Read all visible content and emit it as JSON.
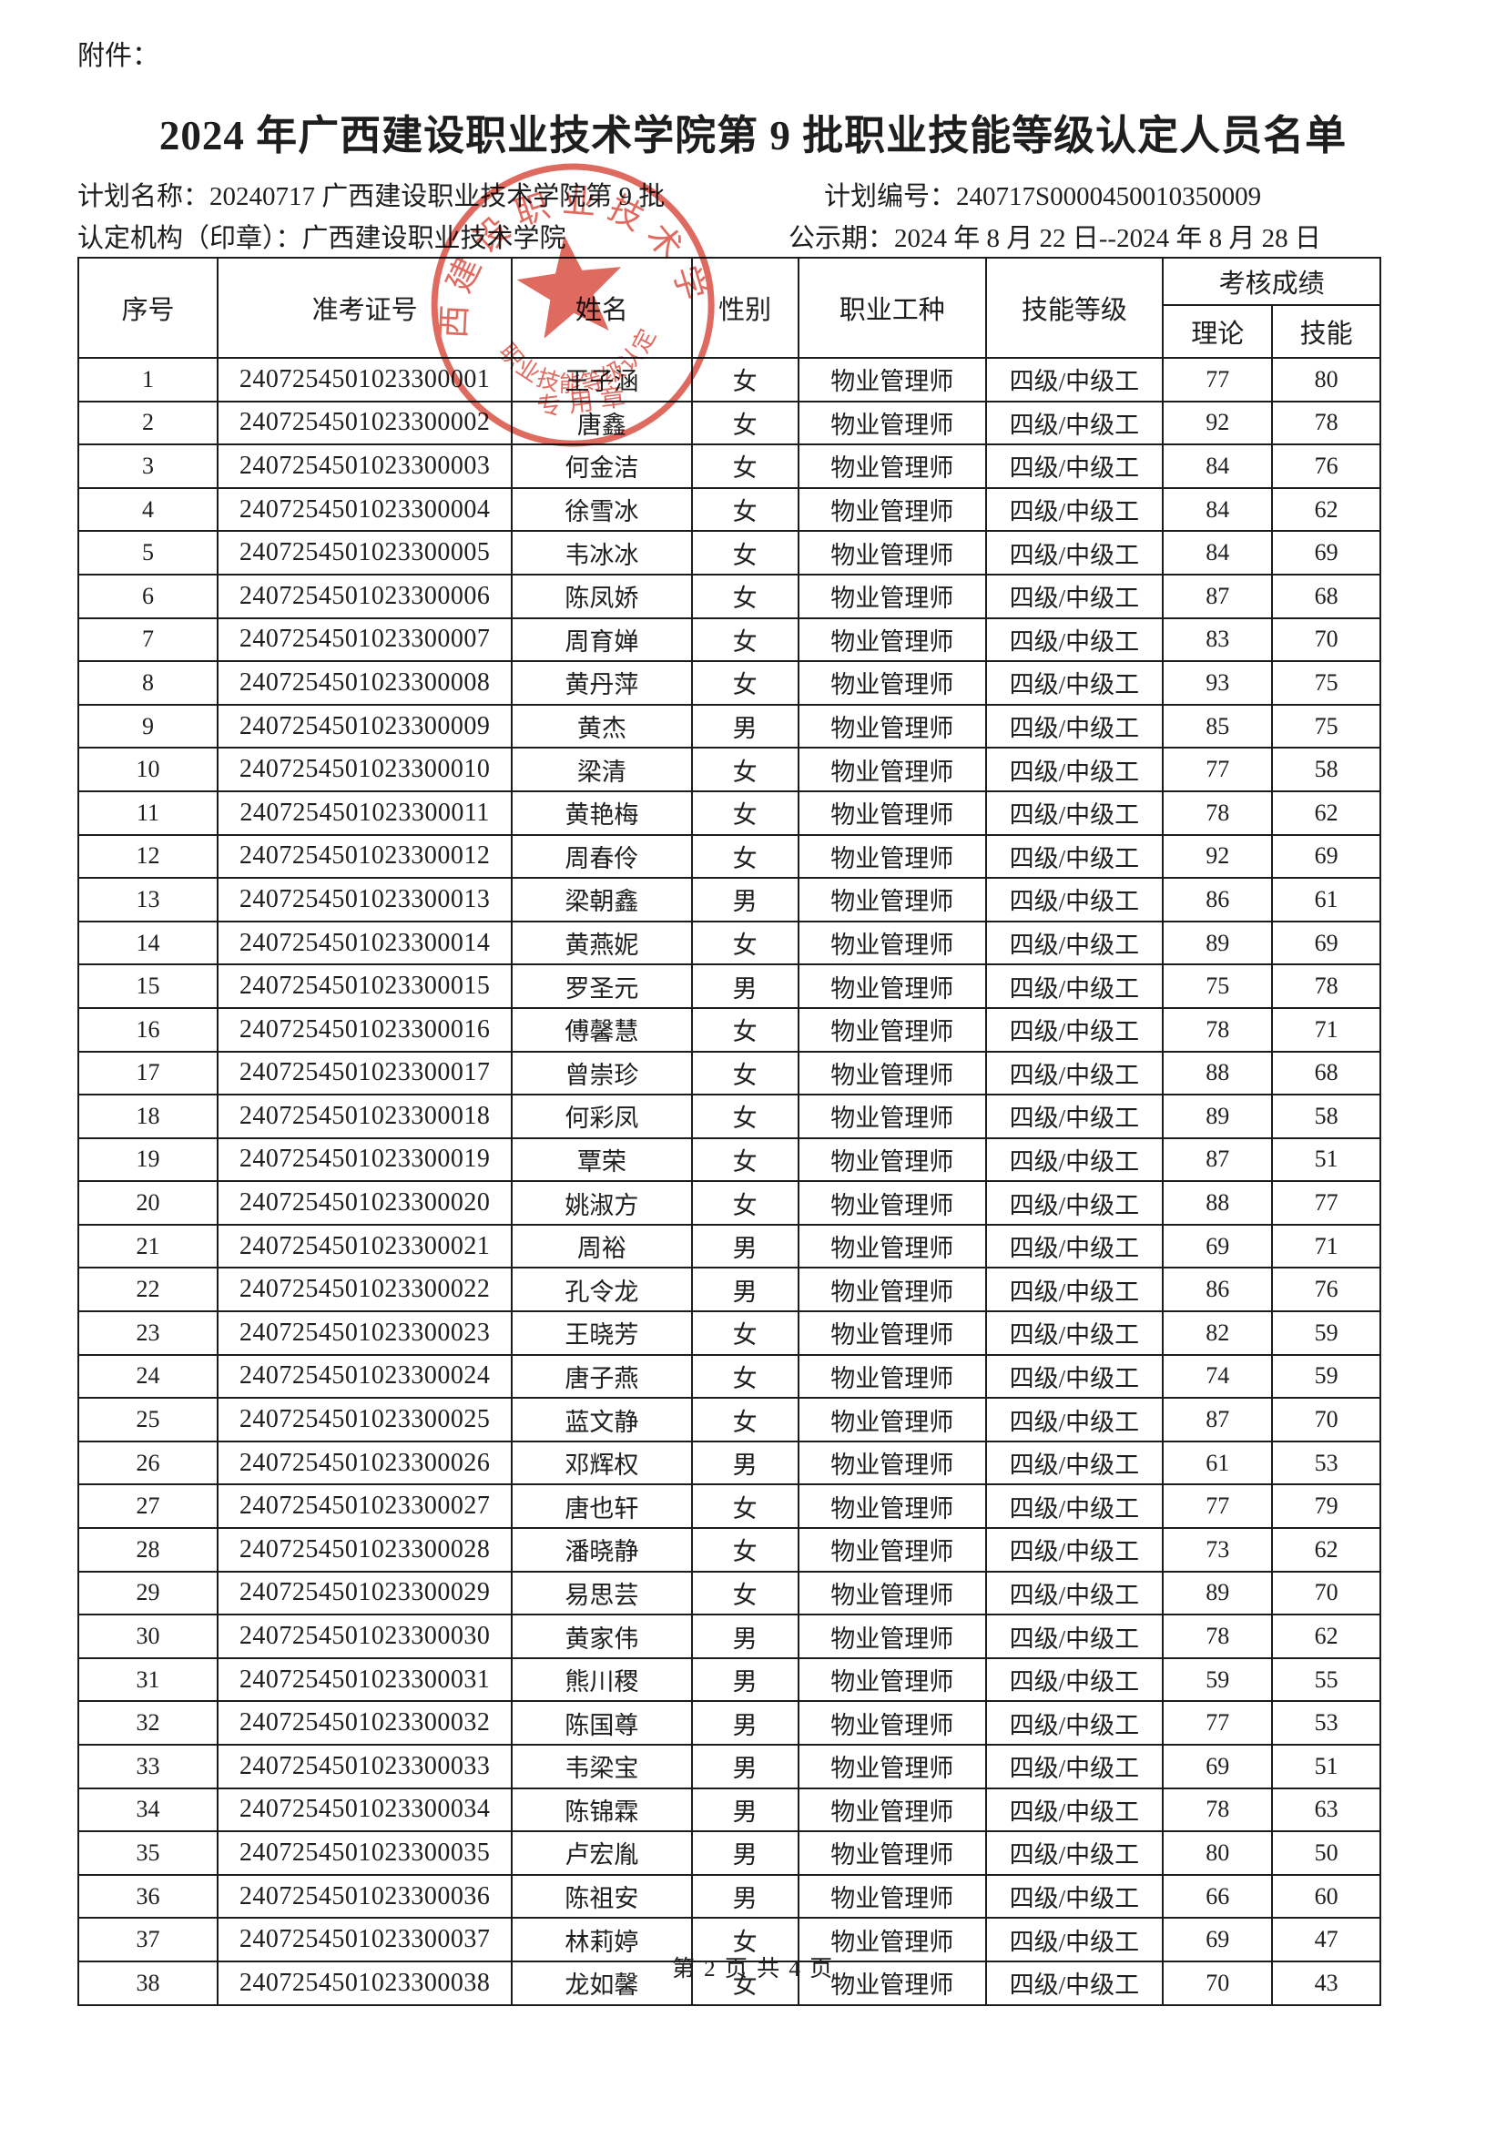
{
  "attachment_label": "附件：",
  "title": "2024 年广西建设职业技术学院第 9 批职业技能等级认定人员名单",
  "meta": {
    "plan_name": "计划名称：20240717 广西建设职业技术学院第 9 批",
    "plan_no": "计划编号：240717S0000450010350009",
    "org": "认定机构（印章）：广西建设职业技术学院",
    "publicity": "公示期：2024 年 8 月 22 日--2024 年 8 月 28 日"
  },
  "stamp": {
    "ring_text": "广西建设职业技术学院",
    "bottom_arc_text": "职业技能等级认定",
    "bottom_label": "专用章",
    "color": "#d8493d"
  },
  "table": {
    "headers": {
      "serial": "序号",
      "ticket": "准考证号",
      "name": "姓名",
      "gender": "性别",
      "occupation": "职业工种",
      "level": "技能等级",
      "score_group": "考核成绩",
      "theory": "理论",
      "skill": "技能"
    },
    "rows": [
      [
        "1",
        "2407254501023300001",
        "王子涵",
        "女",
        "物业管理师",
        "四级/中级工",
        "77",
        "80"
      ],
      [
        "2",
        "2407254501023300002",
        "唐鑫",
        "女",
        "物业管理师",
        "四级/中级工",
        "92",
        "78"
      ],
      [
        "3",
        "2407254501023300003",
        "何金洁",
        "女",
        "物业管理师",
        "四级/中级工",
        "84",
        "76"
      ],
      [
        "4",
        "2407254501023300004",
        "徐雪冰",
        "女",
        "物业管理师",
        "四级/中级工",
        "84",
        "62"
      ],
      [
        "5",
        "2407254501023300005",
        "韦冰冰",
        "女",
        "物业管理师",
        "四级/中级工",
        "84",
        "69"
      ],
      [
        "6",
        "2407254501023300006",
        "陈凤娇",
        "女",
        "物业管理师",
        "四级/中级工",
        "87",
        "68"
      ],
      [
        "7",
        "2407254501023300007",
        "周育婵",
        "女",
        "物业管理师",
        "四级/中级工",
        "83",
        "70"
      ],
      [
        "8",
        "2407254501023300008",
        "黄丹萍",
        "女",
        "物业管理师",
        "四级/中级工",
        "93",
        "75"
      ],
      [
        "9",
        "2407254501023300009",
        "黄杰",
        "男",
        "物业管理师",
        "四级/中级工",
        "85",
        "75"
      ],
      [
        "10",
        "2407254501023300010",
        "梁清",
        "女",
        "物业管理师",
        "四级/中级工",
        "77",
        "58"
      ],
      [
        "11",
        "2407254501023300011",
        "黄艳梅",
        "女",
        "物业管理师",
        "四级/中级工",
        "78",
        "62"
      ],
      [
        "12",
        "2407254501023300012",
        "周春伶",
        "女",
        "物业管理师",
        "四级/中级工",
        "92",
        "69"
      ],
      [
        "13",
        "2407254501023300013",
        "梁朝鑫",
        "男",
        "物业管理师",
        "四级/中级工",
        "86",
        "61"
      ],
      [
        "14",
        "2407254501023300014",
        "黄燕妮",
        "女",
        "物业管理师",
        "四级/中级工",
        "89",
        "69"
      ],
      [
        "15",
        "2407254501023300015",
        "罗圣元",
        "男",
        "物业管理师",
        "四级/中级工",
        "75",
        "78"
      ],
      [
        "16",
        "2407254501023300016",
        "傅馨慧",
        "女",
        "物业管理师",
        "四级/中级工",
        "78",
        "71"
      ],
      [
        "17",
        "2407254501023300017",
        "曾崇珍",
        "女",
        "物业管理师",
        "四级/中级工",
        "88",
        "68"
      ],
      [
        "18",
        "2407254501023300018",
        "何彩凤",
        "女",
        "物业管理师",
        "四级/中级工",
        "89",
        "58"
      ],
      [
        "19",
        "2407254501023300019",
        "覃荣",
        "女",
        "物业管理师",
        "四级/中级工",
        "87",
        "51"
      ],
      [
        "20",
        "2407254501023300020",
        "姚淑方",
        "女",
        "物业管理师",
        "四级/中级工",
        "88",
        "77"
      ],
      [
        "21",
        "2407254501023300021",
        "周裕",
        "男",
        "物业管理师",
        "四级/中级工",
        "69",
        "71"
      ],
      [
        "22",
        "2407254501023300022",
        "孔令龙",
        "男",
        "物业管理师",
        "四级/中级工",
        "86",
        "76"
      ],
      [
        "23",
        "2407254501023300023",
        "王晓芳",
        "女",
        "物业管理师",
        "四级/中级工",
        "82",
        "59"
      ],
      [
        "24",
        "2407254501023300024",
        "唐子燕",
        "女",
        "物业管理师",
        "四级/中级工",
        "74",
        "59"
      ],
      [
        "25",
        "2407254501023300025",
        "蓝文静",
        "女",
        "物业管理师",
        "四级/中级工",
        "87",
        "70"
      ],
      [
        "26",
        "2407254501023300026",
        "邓辉权",
        "男",
        "物业管理师",
        "四级/中级工",
        "61",
        "53"
      ],
      [
        "27",
        "2407254501023300027",
        "唐也轩",
        "女",
        "物业管理师",
        "四级/中级工",
        "77",
        "79"
      ],
      [
        "28",
        "2407254501023300028",
        "潘晓静",
        "女",
        "物业管理师",
        "四级/中级工",
        "73",
        "62"
      ],
      [
        "29",
        "2407254501023300029",
        "易思芸",
        "女",
        "物业管理师",
        "四级/中级工",
        "89",
        "70"
      ],
      [
        "30",
        "2407254501023300030",
        "黄家伟",
        "男",
        "物业管理师",
        "四级/中级工",
        "78",
        "62"
      ],
      [
        "31",
        "2407254501023300031",
        "熊川稷",
        "男",
        "物业管理师",
        "四级/中级工",
        "59",
        "55"
      ],
      [
        "32",
        "2407254501023300032",
        "陈国尊",
        "男",
        "物业管理师",
        "四级/中级工",
        "77",
        "53"
      ],
      [
        "33",
        "2407254501023300033",
        "韦梁宝",
        "男",
        "物业管理师",
        "四级/中级工",
        "69",
        "51"
      ],
      [
        "34",
        "2407254501023300034",
        "陈锦霖",
        "男",
        "物业管理师",
        "四级/中级工",
        "78",
        "63"
      ],
      [
        "35",
        "2407254501023300035",
        "卢宏胤",
        "男",
        "物业管理师",
        "四级/中级工",
        "80",
        "50"
      ],
      [
        "36",
        "2407254501023300036",
        "陈祖安",
        "男",
        "物业管理师",
        "四级/中级工",
        "66",
        "60"
      ],
      [
        "37",
        "2407254501023300037",
        "林莉婷",
        "女",
        "物业管理师",
        "四级/中级工",
        "69",
        "47"
      ],
      [
        "38",
        "2407254501023300038",
        "龙如馨",
        "女",
        "物业管理师",
        "四级/中级工",
        "70",
        "43"
      ]
    ]
  },
  "footer": "第 2 页  共 4 页"
}
